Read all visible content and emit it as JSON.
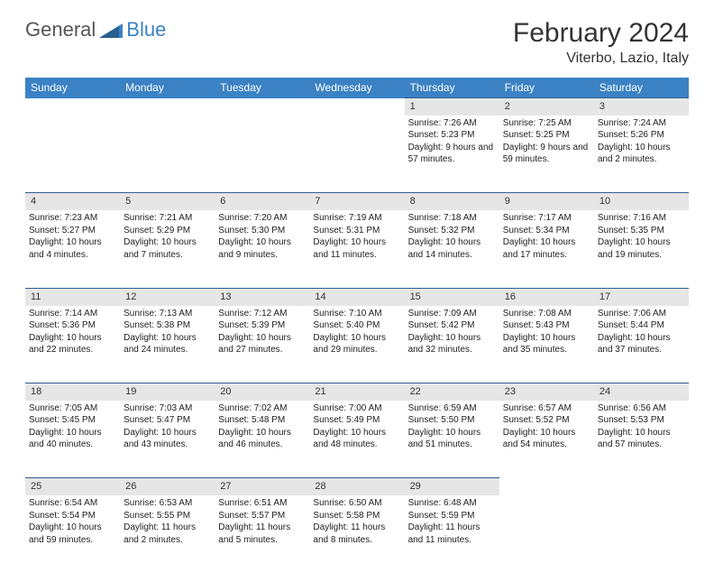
{
  "logo": {
    "part1": "General",
    "part2": "Blue"
  },
  "title": "February 2024",
  "location": "Viterbo, Lazio, Italy",
  "colors": {
    "header_bg": "#3b82c4",
    "daynum_bg": "#e6e6e6",
    "border": "#2f5f8f",
    "text": "#222222",
    "logo_gray": "#555555",
    "logo_blue": "#3b82c4"
  },
  "weekdays": [
    "Sunday",
    "Monday",
    "Tuesday",
    "Wednesday",
    "Thursday",
    "Friday",
    "Saturday"
  ],
  "weeks": [
    {
      "nums": [
        "",
        "",
        "",
        "",
        "1",
        "2",
        "3"
      ],
      "cells": [
        null,
        null,
        null,
        null,
        {
          "sunrise": "Sunrise: 7:26 AM",
          "sunset": "Sunset: 5:23 PM",
          "daylight": "Daylight: 9 hours and 57 minutes."
        },
        {
          "sunrise": "Sunrise: 7:25 AM",
          "sunset": "Sunset: 5:25 PM",
          "daylight": "Daylight: 9 hours and 59 minutes."
        },
        {
          "sunrise": "Sunrise: 7:24 AM",
          "sunset": "Sunset: 5:26 PM",
          "daylight": "Daylight: 10 hours and 2 minutes."
        }
      ]
    },
    {
      "nums": [
        "4",
        "5",
        "6",
        "7",
        "8",
        "9",
        "10"
      ],
      "cells": [
        {
          "sunrise": "Sunrise: 7:23 AM",
          "sunset": "Sunset: 5:27 PM",
          "daylight": "Daylight: 10 hours and 4 minutes."
        },
        {
          "sunrise": "Sunrise: 7:21 AM",
          "sunset": "Sunset: 5:29 PM",
          "daylight": "Daylight: 10 hours and 7 minutes."
        },
        {
          "sunrise": "Sunrise: 7:20 AM",
          "sunset": "Sunset: 5:30 PM",
          "daylight": "Daylight: 10 hours and 9 minutes."
        },
        {
          "sunrise": "Sunrise: 7:19 AM",
          "sunset": "Sunset: 5:31 PM",
          "daylight": "Daylight: 10 hours and 11 minutes."
        },
        {
          "sunrise": "Sunrise: 7:18 AM",
          "sunset": "Sunset: 5:32 PM",
          "daylight": "Daylight: 10 hours and 14 minutes."
        },
        {
          "sunrise": "Sunrise: 7:17 AM",
          "sunset": "Sunset: 5:34 PM",
          "daylight": "Daylight: 10 hours and 17 minutes."
        },
        {
          "sunrise": "Sunrise: 7:16 AM",
          "sunset": "Sunset: 5:35 PM",
          "daylight": "Daylight: 10 hours and 19 minutes."
        }
      ]
    },
    {
      "nums": [
        "11",
        "12",
        "13",
        "14",
        "15",
        "16",
        "17"
      ],
      "cells": [
        {
          "sunrise": "Sunrise: 7:14 AM",
          "sunset": "Sunset: 5:36 PM",
          "daylight": "Daylight: 10 hours and 22 minutes."
        },
        {
          "sunrise": "Sunrise: 7:13 AM",
          "sunset": "Sunset: 5:38 PM",
          "daylight": "Daylight: 10 hours and 24 minutes."
        },
        {
          "sunrise": "Sunrise: 7:12 AM",
          "sunset": "Sunset: 5:39 PM",
          "daylight": "Daylight: 10 hours and 27 minutes."
        },
        {
          "sunrise": "Sunrise: 7:10 AM",
          "sunset": "Sunset: 5:40 PM",
          "daylight": "Daylight: 10 hours and 29 minutes."
        },
        {
          "sunrise": "Sunrise: 7:09 AM",
          "sunset": "Sunset: 5:42 PM",
          "daylight": "Daylight: 10 hours and 32 minutes."
        },
        {
          "sunrise": "Sunrise: 7:08 AM",
          "sunset": "Sunset: 5:43 PM",
          "daylight": "Daylight: 10 hours and 35 minutes."
        },
        {
          "sunrise": "Sunrise: 7:06 AM",
          "sunset": "Sunset: 5:44 PM",
          "daylight": "Daylight: 10 hours and 37 minutes."
        }
      ]
    },
    {
      "nums": [
        "18",
        "19",
        "20",
        "21",
        "22",
        "23",
        "24"
      ],
      "cells": [
        {
          "sunrise": "Sunrise: 7:05 AM",
          "sunset": "Sunset: 5:45 PM",
          "daylight": "Daylight: 10 hours and 40 minutes."
        },
        {
          "sunrise": "Sunrise: 7:03 AM",
          "sunset": "Sunset: 5:47 PM",
          "daylight": "Daylight: 10 hours and 43 minutes."
        },
        {
          "sunrise": "Sunrise: 7:02 AM",
          "sunset": "Sunset: 5:48 PM",
          "daylight": "Daylight: 10 hours and 46 minutes."
        },
        {
          "sunrise": "Sunrise: 7:00 AM",
          "sunset": "Sunset: 5:49 PM",
          "daylight": "Daylight: 10 hours and 48 minutes."
        },
        {
          "sunrise": "Sunrise: 6:59 AM",
          "sunset": "Sunset: 5:50 PM",
          "daylight": "Daylight: 10 hours and 51 minutes."
        },
        {
          "sunrise": "Sunrise: 6:57 AM",
          "sunset": "Sunset: 5:52 PM",
          "daylight": "Daylight: 10 hours and 54 minutes."
        },
        {
          "sunrise": "Sunrise: 6:56 AM",
          "sunset": "Sunset: 5:53 PM",
          "daylight": "Daylight: 10 hours and 57 minutes."
        }
      ]
    },
    {
      "nums": [
        "25",
        "26",
        "27",
        "28",
        "29",
        "",
        ""
      ],
      "cells": [
        {
          "sunrise": "Sunrise: 6:54 AM",
          "sunset": "Sunset: 5:54 PM",
          "daylight": "Daylight: 10 hours and 59 minutes."
        },
        {
          "sunrise": "Sunrise: 6:53 AM",
          "sunset": "Sunset: 5:55 PM",
          "daylight": "Daylight: 11 hours and 2 minutes."
        },
        {
          "sunrise": "Sunrise: 6:51 AM",
          "sunset": "Sunset: 5:57 PM",
          "daylight": "Daylight: 11 hours and 5 minutes."
        },
        {
          "sunrise": "Sunrise: 6:50 AM",
          "sunset": "Sunset: 5:58 PM",
          "daylight": "Daylight: 11 hours and 8 minutes."
        },
        {
          "sunrise": "Sunrise: 6:48 AM",
          "sunset": "Sunset: 5:59 PM",
          "daylight": "Daylight: 11 hours and 11 minutes."
        },
        null,
        null
      ]
    }
  ]
}
